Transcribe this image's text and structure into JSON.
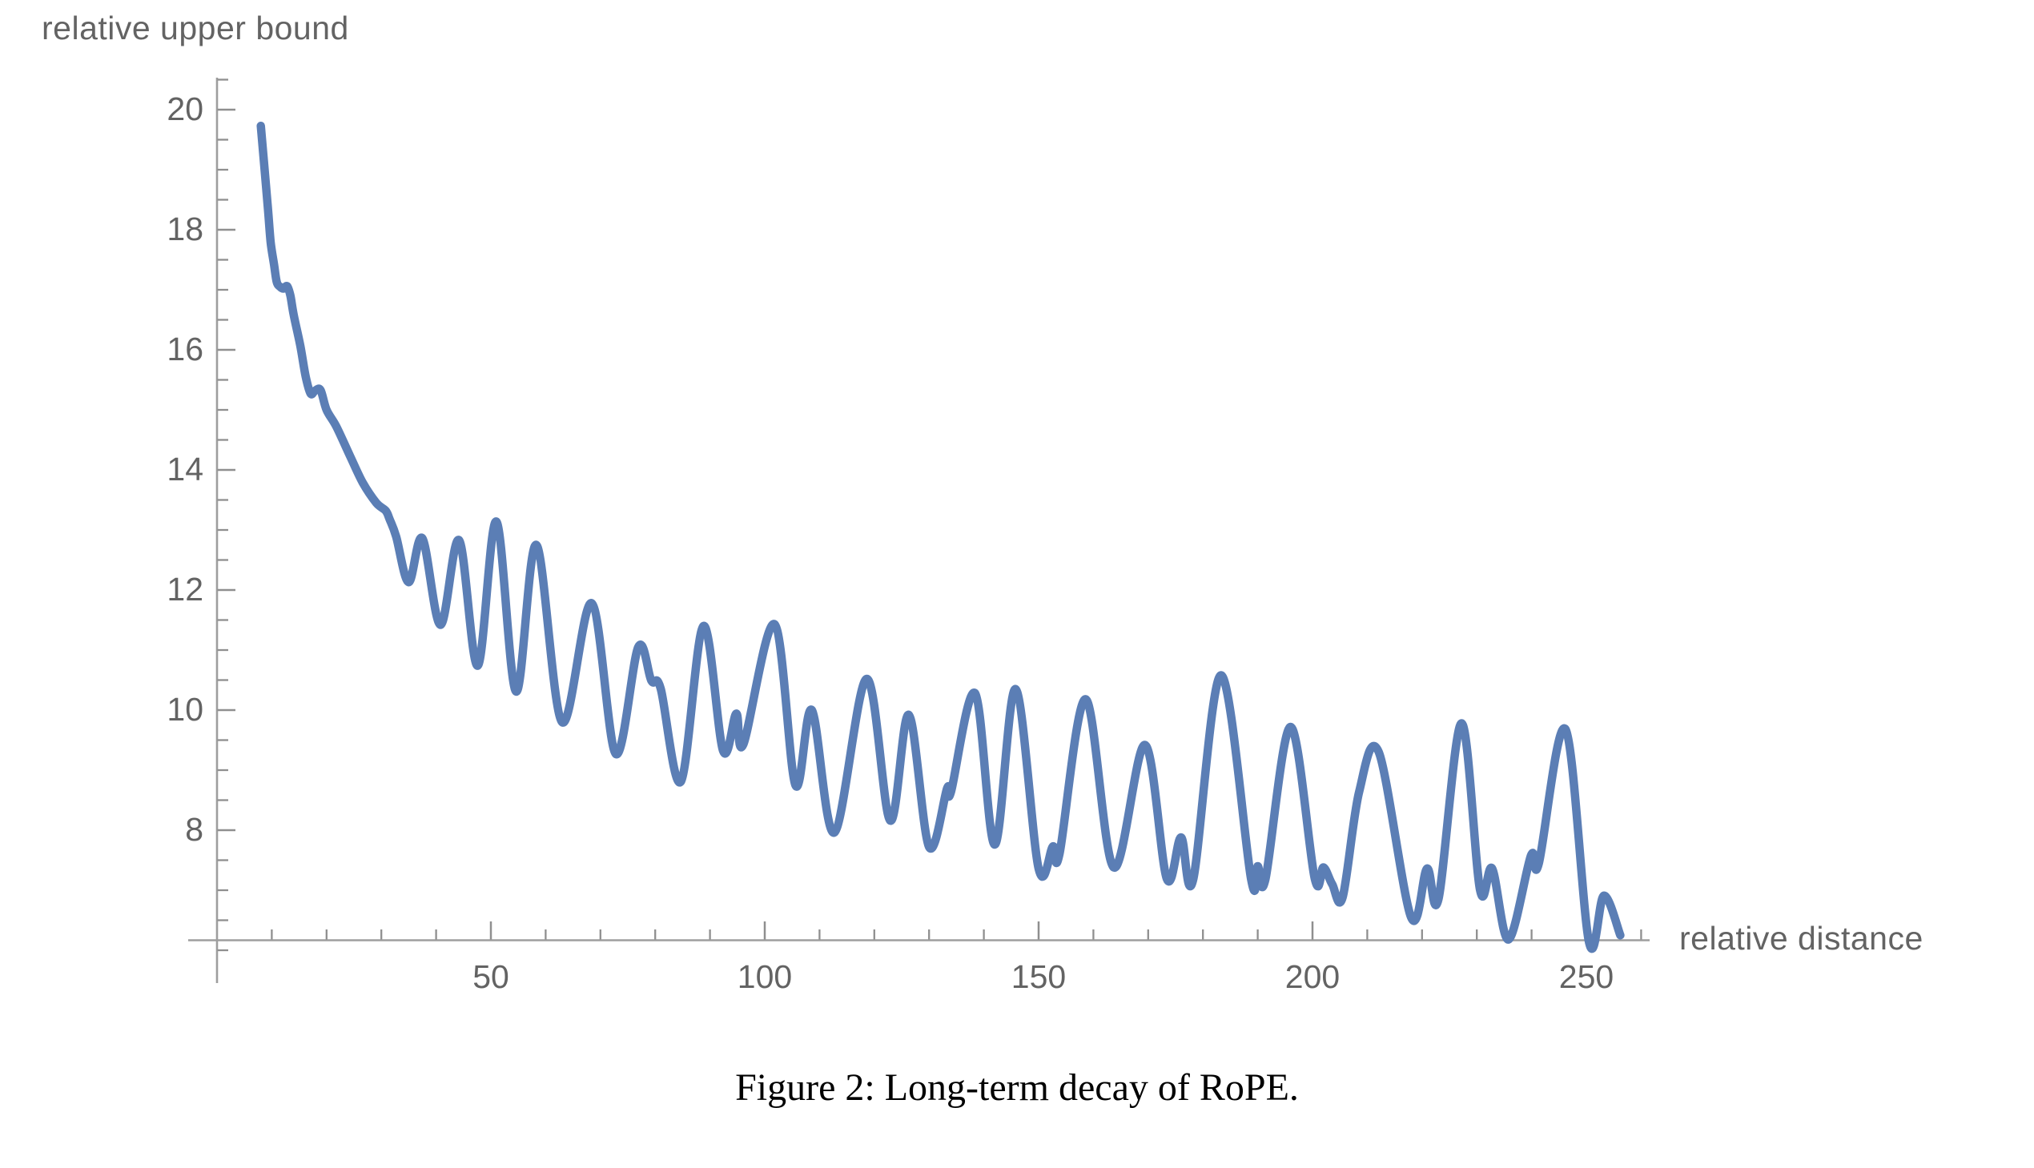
{
  "figure": {
    "caption": "Figure 2: Long-term decay of RoPE."
  },
  "style": {
    "background": "#FFFFFF",
    "axis_color": "#9E9E9E",
    "tick_color": "#8F8F8F",
    "label_color": "#636363",
    "caption_color": "#000000",
    "curve_color": "#5B7EB5"
  },
  "chart_data": {
    "type": "line",
    "title": "",
    "xlabel": "relative distance",
    "ylabel": "relative upper bound",
    "xlim": [
      0,
      262
    ],
    "ylim": [
      5.5,
      20.5
    ],
    "grid": false,
    "legend_position": "none",
    "x_axis": {
      "major_ticks": [
        50,
        100,
        150,
        200,
        250
      ],
      "major_tick_labels": [
        "50",
        "100",
        "150",
        "200",
        "250"
      ],
      "minor_ticks": [
        10,
        20,
        30,
        40,
        60,
        70,
        80,
        90,
        110,
        120,
        130,
        140,
        160,
        170,
        180,
        190,
        210,
        220,
        230,
        240,
        260
      ]
    },
    "y_axis": {
      "major_ticks": [
        8,
        10,
        12,
        14,
        16,
        18,
        20
      ],
      "major_tick_labels": [
        "8",
        "10",
        "12",
        "14",
        "16",
        "18",
        "20"
      ],
      "minor_tick_step": 0.5,
      "minor_tick_range": [
        6,
        20.5
      ]
    },
    "series": [
      {
        "name": "RoPE relative upper bound",
        "color": "#5B7EB5",
        "x": [
          8.0,
          8.6,
          9.3,
          9.8,
          10.4,
          10.9,
          11.5,
          12.1,
          12.8,
          13.4,
          14.0,
          15.2,
          16.2,
          17.1,
          17.9,
          18.9,
          20.0,
          21.8,
          24.3,
          26.6,
          29.1,
          30.8,
          31.5,
          32.7,
          35.0,
          37.5,
          40.8,
          44.2,
          47.6,
          51.0,
          54.6,
          58.3,
          63.0,
          68.4,
          72.8,
          76.9,
          79.3,
          81.0,
          84.7,
          88.8,
          92.4,
          94.8,
          96.1,
          101.8,
          105.6,
          108.6,
          112.7,
          118.6,
          122.9,
          126.3,
          130.0,
          133.3,
          134.0,
          138.4,
          142.0,
          145.8,
          150.0,
          152.6,
          153.8,
          158.6,
          163.7,
          169.4,
          173.4,
          176.0,
          178.2,
          183.3,
          188.8,
          190.0,
          191.4,
          196.0,
          200.4,
          202.0,
          203.6,
          205.5,
          208.5,
          212.1,
          218.0,
          220.9,
          223.0,
          227.2,
          230.6,
          232.8,
          235.8,
          239.9,
          241.3,
          246.2,
          250.5,
          253.2,
          256.2
        ],
        "y": [
          19.73,
          19.1,
          18.35,
          17.79,
          17.43,
          17.13,
          17.05,
          17.02,
          17.06,
          16.9,
          16.58,
          16.07,
          15.55,
          15.27,
          15.32,
          15.33,
          15.0,
          14.72,
          14.23,
          13.79,
          13.45,
          13.32,
          13.18,
          12.89,
          12.13,
          12.86,
          11.42,
          12.83,
          10.74,
          13.14,
          10.31,
          12.75,
          9.8,
          11.78,
          9.27,
          11.05,
          10.49,
          10.36,
          8.81,
          11.4,
          9.32,
          9.94,
          9.43,
          11.43,
          8.75,
          10.0,
          7.96,
          10.52,
          8.16,
          9.92,
          7.72,
          8.7,
          8.64,
          10.28,
          7.76,
          10.35,
          7.36,
          7.73,
          7.6,
          10.18,
          7.38,
          9.42,
          7.19,
          7.88,
          7.17,
          10.58,
          7.18,
          7.4,
          7.18,
          9.72,
          7.2,
          7.38,
          7.1,
          6.88,
          8.63,
          9.3,
          6.55,
          7.36,
          6.85,
          9.78,
          7.0,
          7.36,
          6.18,
          7.58,
          7.44,
          9.68,
          6.13,
          6.91,
          6.25
        ]
      }
    ]
  }
}
